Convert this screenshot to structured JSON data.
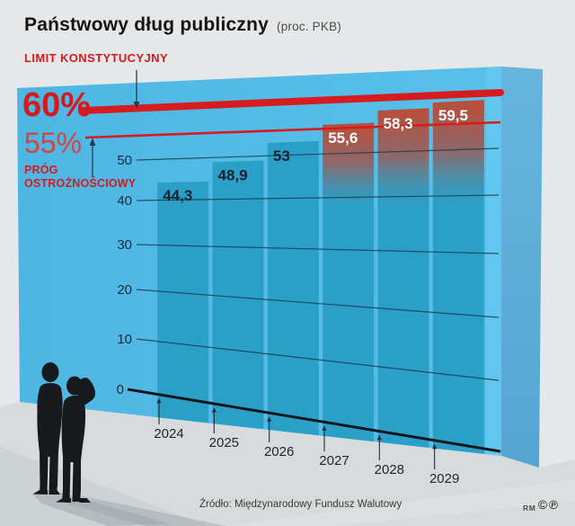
{
  "header": {
    "title": "Państwowy dług publiczny",
    "subtitle": "(proc. PKB)"
  },
  "annotations": {
    "limit_label": "LIMIT KONSTYTUCYJNY",
    "limit_value": "60%",
    "threshold_value": "55%",
    "threshold_label_lines": [
      "PRÓG",
      "OSTROŻNOŚCIOWY"
    ]
  },
  "footer": {
    "source": "Źródło: Międzynarodowy Fundusz Walutowy",
    "author_initials": "RM",
    "rights_symbols": "©℗"
  },
  "colors": {
    "accent_red": "#d71c1f",
    "label_red": "#d6191c",
    "wall_blue": "#53bce7",
    "wall_strip_blue": "#63c6ee",
    "wall_side_blue": "#5badd9",
    "bar_blue": "#2aa0c8",
    "over_limit_tint": "#c14a31",
    "grid_line": "#1e3c4e",
    "axis_black": "#0b141c",
    "dark_value_label": "#13202d",
    "light_value_label": "#ffffff",
    "background_gray": "#e5e7e8",
    "floor_gray": "#d8dbdc"
  },
  "chart_data": {
    "type": "bar",
    "title": "Państwowy dług publiczny",
    "xlabel": "",
    "ylabel": "proc. PKB",
    "categories": [
      "2024",
      "2025",
      "2026",
      "2027",
      "2028",
      "2029"
    ],
    "values": [
      44.3,
      48.9,
      53,
      55.6,
      58.3,
      59.5
    ],
    "value_labels": [
      "44,3",
      "48,9",
      "53",
      "55,6",
      "58,3",
      "59,5"
    ],
    "y_ticks": [
      0,
      10,
      20,
      30,
      40,
      50
    ],
    "ylim": [
      0,
      62
    ],
    "grid": true,
    "legend": "none",
    "reference_lines": [
      {
        "value": 60,
        "label": "LIMIT KONSTYTUCYJNY",
        "style": "thick"
      },
      {
        "value": 55,
        "label": "PRÓG OSTROŻNOŚCIOWY",
        "style": "thin"
      }
    ],
    "highlight_over_value": 55,
    "highlighted_categories": [
      "2027",
      "2028",
      "2029"
    ]
  }
}
